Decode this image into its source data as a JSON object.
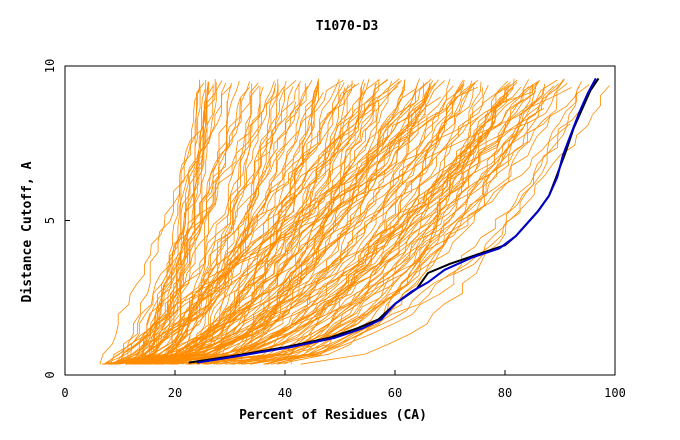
{
  "chart_data": {
    "type": "line",
    "title": "T1070-D3",
    "xlabel": "Percent of Residues (CA)",
    "ylabel": "Distance Cutoff, A",
    "xlim": [
      0,
      100
    ],
    "ylim": [
      0,
      10
    ],
    "x_ticks": [
      0,
      20,
      40,
      60,
      80,
      100
    ],
    "y_ticks": [
      0,
      5,
      10
    ],
    "grid": false,
    "legend": "none",
    "colors": {
      "background_models": "#ff8c00",
      "highlight_1": "#000000",
      "highlight_2": "#0000cd"
    },
    "highlight_series": [
      {
        "color": "#000000",
        "x": [
          22.5,
          30,
          40,
          48,
          53,
          57,
          60,
          64,
          66,
          70,
          75,
          80,
          82,
          84,
          86,
          88,
          89.5,
          91,
          92.5,
          94,
          95.5,
          97
        ],
        "y": [
          0.4,
          0.6,
          0.9,
          1.2,
          1.5,
          1.8,
          2.3,
          2.8,
          3.3,
          3.6,
          3.9,
          4.2,
          4.5,
          4.9,
          5.3,
          5.8,
          6.5,
          7.2,
          8.0,
          8.6,
          9.2,
          9.6
        ]
      },
      {
        "color": "#0000cd",
        "x": [
          24,
          31,
          41,
          49,
          54,
          57.5,
          60,
          63,
          66,
          69,
          74,
          79,
          82,
          84,
          86,
          88,
          89.5,
          90.5,
          92,
          93.5,
          95,
          96.5
        ],
        "y": [
          0.4,
          0.6,
          0.9,
          1.2,
          1.5,
          1.8,
          2.3,
          2.7,
          3.0,
          3.4,
          3.8,
          4.1,
          4.5,
          4.9,
          5.3,
          5.8,
          6.4,
          7.1,
          7.8,
          8.5,
          9.1,
          9.6
        ]
      }
    ],
    "background_models": {
      "color": "#ff8c00",
      "count": 160,
      "x_start_range": [
        6,
        45
      ],
      "x_end_range": [
        18,
        100
      ],
      "y_range": [
        0.35,
        9.6
      ]
    }
  }
}
